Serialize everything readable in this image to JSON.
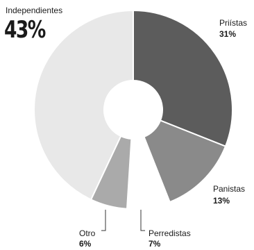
{
  "chart_data": {
    "type": "pie",
    "variant": "donut",
    "slices": [
      {
        "name": "Priístas",
        "value_label": "31%",
        "value": 31,
        "color": "#5c5c5c"
      },
      {
        "name": "Panistas",
        "value_label": "13%",
        "value": 13,
        "color": "#8a8a8a"
      },
      {
        "name": "Perredistas",
        "value_label": "7%",
        "value": 7,
        "color": "#ffffff"
      },
      {
        "name": "Otro",
        "value_label": "6%",
        "value": 6,
        "color": "#aaaaaa"
      },
      {
        "name": "Independientes",
        "value_label": "43%",
        "value": 43,
        "color": "#e8e8e8"
      }
    ],
    "legend": "none",
    "grid": false
  }
}
